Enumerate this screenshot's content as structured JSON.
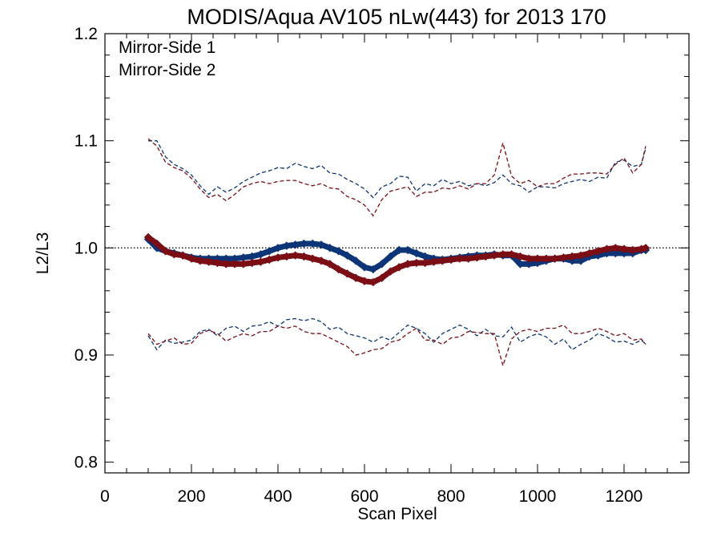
{
  "chart_data": {
    "type": "scatter",
    "title": "MODIS/Aqua AV105 nLw(443) for 2013 170",
    "xlabel": "Scan Pixel",
    "ylabel": "L2/L3",
    "xlim": [
      0,
      1350
    ],
    "ylim": [
      0.79,
      1.2
    ],
    "x_ticks": [
      0,
      200,
      400,
      600,
      800,
      1000,
      1200
    ],
    "x_tick_labels": [
      "0",
      "200",
      "400",
      "600",
      "800",
      "1000",
      "1200"
    ],
    "y_ticks": [
      0.8,
      0.9,
      1.0,
      1.1,
      1.2
    ],
    "y_tick_labels": [
      "0.8",
      "0.9",
      "1.0",
      "1.1",
      "1.2"
    ],
    "reference_line": 1.0,
    "legend_position": "top-left",
    "colors": {
      "ms1": "#0b3577",
      "ms2": "#7b0d14"
    },
    "series": [
      {
        "name": "Mirror-Side 1",
        "style": "points",
        "x": [
          100,
          120,
          140,
          160,
          180,
          200,
          220,
          240,
          260,
          280,
          300,
          320,
          340,
          360,
          380,
          400,
          420,
          440,
          460,
          480,
          500,
          520,
          540,
          560,
          580,
          600,
          620,
          640,
          660,
          680,
          700,
          720,
          740,
          760,
          780,
          800,
          820,
          840,
          860,
          880,
          900,
          920,
          940,
          960,
          980,
          1000,
          1020,
          1040,
          1060,
          1080,
          1100,
          1120,
          1140,
          1160,
          1180,
          1200,
          1220,
          1240,
          1250
        ],
        "y": [
          1.008,
          1.0,
          0.997,
          0.995,
          0.993,
          0.991,
          0.99,
          0.99,
          0.99,
          0.99,
          0.99,
          0.991,
          0.992,
          0.994,
          0.997,
          1.0,
          1.002,
          1.003,
          1.004,
          1.004,
          1.003,
          1.0,
          0.997,
          0.993,
          0.988,
          0.982,
          0.98,
          0.985,
          0.992,
          0.998,
          0.998,
          0.995,
          0.992,
          0.99,
          0.989,
          0.99,
          0.991,
          0.992,
          0.993,
          0.993,
          0.994,
          0.993,
          0.993,
          0.985,
          0.985,
          0.986,
          0.988,
          0.99,
          0.99,
          0.988,
          0.988,
          0.992,
          0.993,
          0.995,
          0.995,
          0.995,
          0.995,
          0.998,
          0.998
        ]
      },
      {
        "name": "Mirror-Side 2",
        "style": "points",
        "x": [
          100,
          120,
          140,
          160,
          180,
          200,
          220,
          240,
          260,
          280,
          300,
          320,
          340,
          360,
          380,
          400,
          420,
          440,
          460,
          480,
          500,
          520,
          540,
          560,
          580,
          600,
          620,
          640,
          660,
          680,
          700,
          720,
          740,
          760,
          780,
          800,
          820,
          840,
          860,
          880,
          900,
          920,
          940,
          960,
          980,
          1000,
          1020,
          1040,
          1060,
          1080,
          1100,
          1120,
          1140,
          1160,
          1180,
          1200,
          1220,
          1240,
          1250
        ],
        "y": [
          1.01,
          1.004,
          0.997,
          0.994,
          0.993,
          0.99,
          0.988,
          0.987,
          0.986,
          0.985,
          0.985,
          0.985,
          0.986,
          0.987,
          0.989,
          0.991,
          0.992,
          0.993,
          0.992,
          0.99,
          0.988,
          0.985,
          0.98,
          0.976,
          0.972,
          0.969,
          0.968,
          0.972,
          0.978,
          0.982,
          0.985,
          0.986,
          0.986,
          0.987,
          0.988,
          0.989,
          0.99,
          0.99,
          0.991,
          0.992,
          0.993,
          0.994,
          0.994,
          0.992,
          0.99,
          0.99,
          0.99,
          0.99,
          0.991,
          0.992,
          0.993,
          0.995,
          0.997,
          0.999,
          1.0,
          0.999,
          0.998,
          0.999,
          1.0
        ]
      },
      {
        "name": "Mirror-Side 1 upper",
        "style": "dashed",
        "color_key": "ms1",
        "x": [
          100,
          120,
          140,
          160,
          180,
          200,
          220,
          240,
          260,
          280,
          300,
          320,
          340,
          360,
          380,
          400,
          420,
          440,
          460,
          480,
          500,
          520,
          540,
          560,
          580,
          600,
          620,
          640,
          660,
          680,
          700,
          720,
          740,
          760,
          780,
          800,
          820,
          840,
          860,
          880,
          900,
          920,
          940,
          960,
          980,
          1000,
          1020,
          1040,
          1060,
          1080,
          1100,
          1120,
          1140,
          1160,
          1180,
          1200,
          1220,
          1240,
          1250
        ],
        "y": [
          1.1,
          1.1,
          1.085,
          1.078,
          1.074,
          1.068,
          1.058,
          1.05,
          1.057,
          1.052,
          1.056,
          1.062,
          1.066,
          1.07,
          1.072,
          1.075,
          1.074,
          1.079,
          1.076,
          1.074,
          1.077,
          1.07,
          1.069,
          1.064,
          1.06,
          1.055,
          1.047,
          1.057,
          1.06,
          1.067,
          1.066,
          1.053,
          1.06,
          1.058,
          1.064,
          1.06,
          1.062,
          1.058,
          1.06,
          1.058,
          1.061,
          1.068,
          1.06,
          1.058,
          1.052,
          1.057,
          1.057,
          1.056,
          1.06,
          1.062,
          1.064,
          1.062,
          1.066,
          1.065,
          1.08,
          1.082,
          1.076,
          1.078,
          1.093
        ]
      },
      {
        "name": "Mirror-Side 2 upper",
        "style": "dashed",
        "color_key": "ms2",
        "x": [
          100,
          120,
          140,
          160,
          180,
          200,
          220,
          240,
          260,
          280,
          300,
          320,
          340,
          360,
          380,
          400,
          420,
          440,
          460,
          480,
          500,
          520,
          540,
          560,
          580,
          600,
          620,
          640,
          660,
          680,
          700,
          720,
          740,
          760,
          780,
          800,
          820,
          840,
          860,
          880,
          900,
          920,
          940,
          960,
          980,
          1000,
          1020,
          1040,
          1060,
          1080,
          1100,
          1120,
          1140,
          1160,
          1180,
          1200,
          1220,
          1240,
          1250
        ],
        "y": [
          1.102,
          1.095,
          1.08,
          1.075,
          1.072,
          1.065,
          1.055,
          1.047,
          1.05,
          1.044,
          1.05,
          1.057,
          1.06,
          1.062,
          1.06,
          1.062,
          1.063,
          1.063,
          1.06,
          1.058,
          1.06,
          1.056,
          1.055,
          1.048,
          1.045,
          1.04,
          1.03,
          1.045,
          1.053,
          1.055,
          1.057,
          1.048,
          1.052,
          1.052,
          1.056,
          1.055,
          1.058,
          1.055,
          1.06,
          1.06,
          1.068,
          1.098,
          1.067,
          1.06,
          1.063,
          1.057,
          1.06,
          1.06,
          1.065,
          1.069,
          1.069,
          1.07,
          1.07,
          1.069,
          1.078,
          1.084,
          1.07,
          1.078,
          1.095
        ]
      },
      {
        "name": "Mirror-Side 1 lower",
        "style": "dashed",
        "color_key": "ms1",
        "x": [
          100,
          120,
          140,
          160,
          180,
          200,
          220,
          240,
          260,
          280,
          300,
          320,
          340,
          360,
          380,
          400,
          420,
          440,
          460,
          480,
          500,
          520,
          540,
          560,
          580,
          600,
          620,
          640,
          660,
          680,
          700,
          720,
          740,
          760,
          780,
          800,
          820,
          840,
          860,
          880,
          900,
          920,
          940,
          960,
          980,
          1000,
          1020,
          1040,
          1060,
          1080,
          1100,
          1120,
          1140,
          1160,
          1180,
          1200,
          1220,
          1240,
          1250
        ],
        "y": [
          0.918,
          0.905,
          0.914,
          0.911,
          0.912,
          0.914,
          0.922,
          0.924,
          0.918,
          0.925,
          0.927,
          0.922,
          0.927,
          0.928,
          0.931,
          0.927,
          0.933,
          0.934,
          0.932,
          0.934,
          0.931,
          0.924,
          0.926,
          0.92,
          0.918,
          0.916,
          0.912,
          0.917,
          0.914,
          0.921,
          0.928,
          0.925,
          0.92,
          0.912,
          0.92,
          0.924,
          0.928,
          0.924,
          0.918,
          0.924,
          0.918,
          0.917,
          0.926,
          0.912,
          0.917,
          0.92,
          0.917,
          0.91,
          0.915,
          0.905,
          0.91,
          0.914,
          0.92,
          0.917,
          0.912,
          0.913,
          0.91,
          0.914,
          0.91
        ]
      },
      {
        "name": "Mirror-Side 2 lower",
        "style": "dashed",
        "color_key": "ms2",
        "x": [
          100,
          120,
          140,
          160,
          180,
          200,
          220,
          240,
          260,
          280,
          300,
          320,
          340,
          360,
          380,
          400,
          420,
          440,
          460,
          480,
          500,
          520,
          540,
          560,
          580,
          600,
          620,
          640,
          660,
          680,
          700,
          720,
          740,
          760,
          780,
          800,
          820,
          840,
          860,
          880,
          900,
          920,
          940,
          960,
          980,
          1000,
          1020,
          1040,
          1060,
          1080,
          1100,
          1120,
          1140,
          1160,
          1180,
          1200,
          1220,
          1240,
          1250
        ],
        "y": [
          0.92,
          0.91,
          0.913,
          0.916,
          0.91,
          0.911,
          0.92,
          0.923,
          0.92,
          0.913,
          0.917,
          0.92,
          0.918,
          0.922,
          0.922,
          0.927,
          0.925,
          0.927,
          0.922,
          0.92,
          0.92,
          0.916,
          0.912,
          0.908,
          0.9,
          0.902,
          0.905,
          0.906,
          0.912,
          0.914,
          0.92,
          0.925,
          0.914,
          0.914,
          0.91,
          0.916,
          0.917,
          0.922,
          0.921,
          0.92,
          0.92,
          0.89,
          0.915,
          0.922,
          0.924,
          0.922,
          0.925,
          0.925,
          0.928,
          0.92,
          0.92,
          0.922,
          0.925,
          0.922,
          0.918,
          0.92,
          0.914,
          0.915,
          0.91
        ]
      }
    ]
  }
}
